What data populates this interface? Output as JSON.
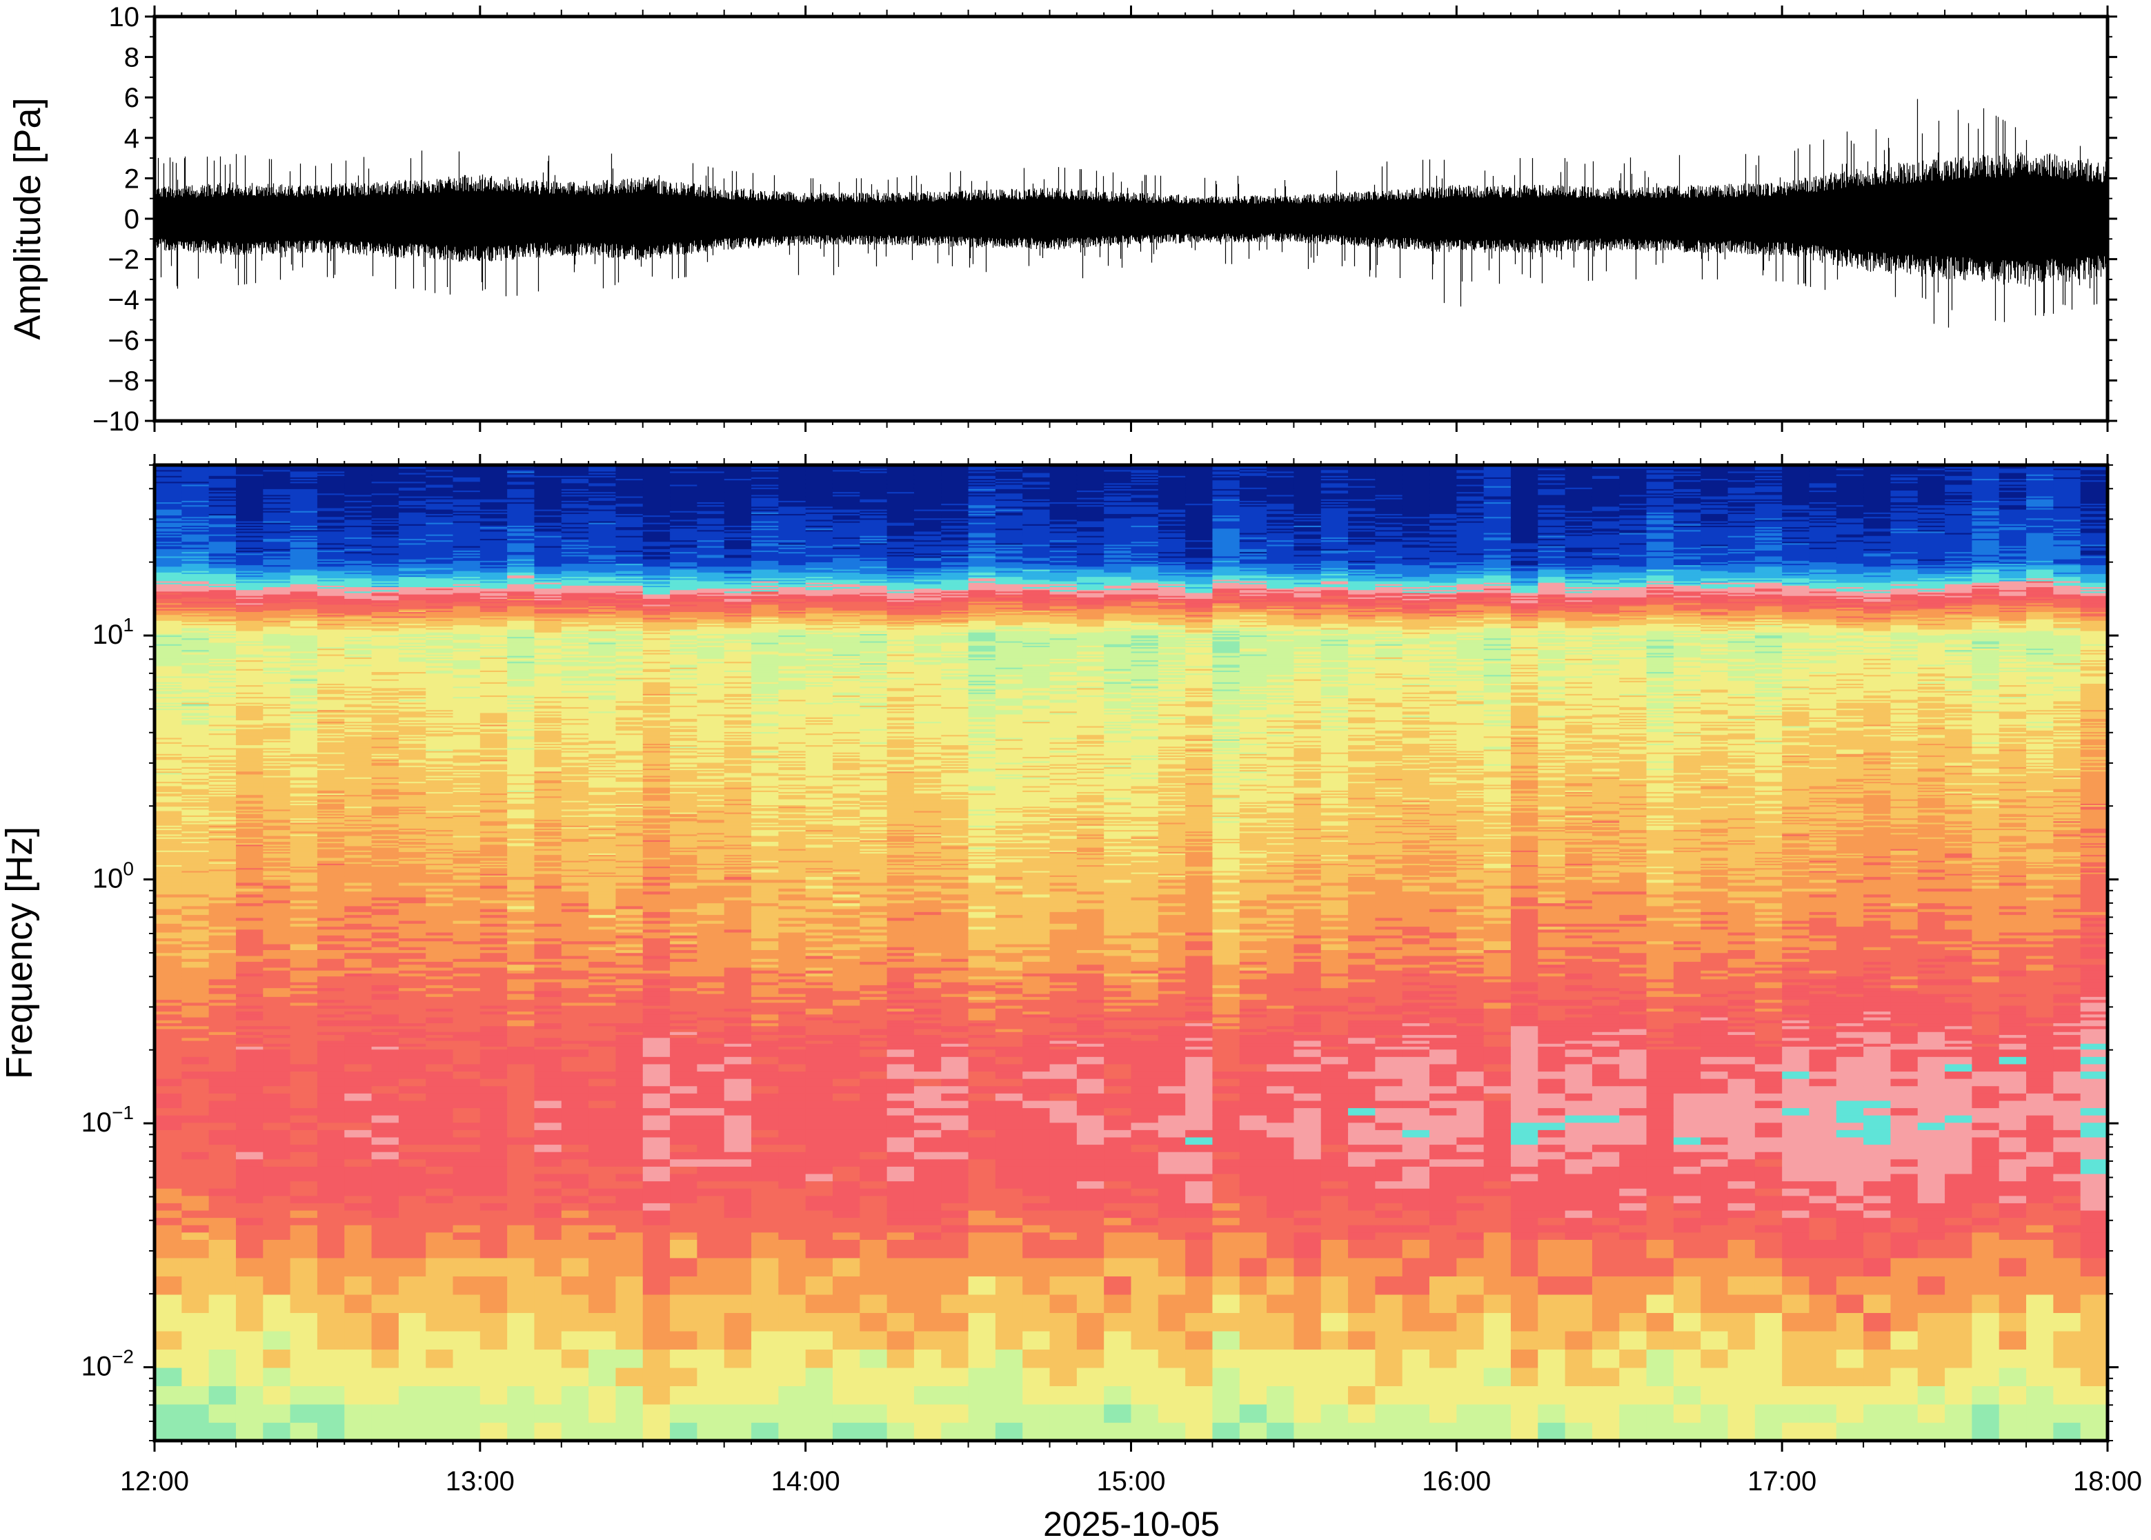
{
  "chart_data": [
    {
      "type": "line",
      "panel": "waveform",
      "ylabel": "Amplitude [Pa]",
      "ylim": [
        -10,
        10
      ],
      "yticks": [
        -10,
        -8,
        -6,
        -4,
        -2,
        0,
        2,
        4,
        6,
        8,
        10
      ],
      "ytick_labels": [
        "−10",
        "−8",
        "−6",
        "−4",
        "−2",
        "0",
        "2",
        "4",
        "6",
        "8",
        "10"
      ],
      "xlim": [
        "12:00",
        "18:00"
      ],
      "grid": false,
      "line_color": "#000000",
      "envelope": {
        "time_hours": [
          12.0,
          12.25,
          12.5,
          12.75,
          13.0,
          13.25,
          13.5,
          13.75,
          14.0,
          14.25,
          14.5,
          14.75,
          15.0,
          15.25,
          15.5,
          15.75,
          16.0,
          16.25,
          16.5,
          16.75,
          17.0,
          17.25,
          17.5,
          17.75,
          18.0
        ],
        "typical_abs_amplitude": [
          1.2,
          1.4,
          1.3,
          1.5,
          1.7,
          1.4,
          1.6,
          1.2,
          1.0,
          1.0,
          1.1,
          1.2,
          1.0,
          0.9,
          0.9,
          1.1,
          1.3,
          1.3,
          1.2,
          1.3,
          1.4,
          2.0,
          2.3,
          2.6,
          2.2
        ],
        "max_positive": [
          3.0,
          3.2,
          2.6,
          3.4,
          3.3,
          3.1,
          3.3,
          2.4,
          2.0,
          2.0,
          2.4,
          2.6,
          2.2,
          2.0,
          2.4,
          2.8,
          3.0,
          3.0,
          3.0,
          3.2,
          3.2,
          4.6,
          6.6,
          4.2,
          3.6
        ],
        "max_negative": [
          -4.0,
          -3.3,
          -2.8,
          -3.5,
          -3.9,
          -3.7,
          -3.2,
          -2.6,
          -3.4,
          -2.2,
          -2.4,
          -3.5,
          -2.4,
          -2.2,
          -2.4,
          -2.9,
          -4.4,
          -3.2,
          -3.0,
          -3.0,
          -3.1,
          -3.9,
          -5.4,
          -5.0,
          -4.1
        ]
      }
    },
    {
      "type": "heatmap",
      "panel": "spectrogram",
      "xlabel": "2025-10-05",
      "ylabel": "Frequency [Hz]",
      "yscale": "log",
      "ylim": [
        0.005,
        50
      ],
      "yticks": [
        0.01,
        0.1,
        1,
        10
      ],
      "ytick_labels": [
        {
          "base": "10",
          "exp": "−2"
        },
        {
          "base": "10",
          "exp": "−1"
        },
        {
          "base": "10",
          "exp": "0"
        },
        {
          "base": "10",
          "exp": "1"
        }
      ],
      "xticks": [
        "12:00",
        "13:00",
        "14:00",
        "15:00",
        "16:00",
        "17:00",
        "18:00"
      ],
      "colormap": [
        "#7fe0e8",
        "#92eab0",
        "#cdf59a",
        "#f2ee84",
        "#f7c45f",
        "#f89a52",
        "#f56a5c",
        "#f45b63",
        "#f7a0a4",
        "#5fe4d8",
        "#2fb2e6",
        "#1a78e0",
        "#0c3cc4",
        "#061c8c"
      ],
      "frequency_hz": [
        0.006,
        0.012,
        0.025,
        0.05,
        0.1,
        0.2,
        0.5,
        1.0,
        2.5,
        5.0,
        10.0,
        20.0,
        40.0
      ],
      "time_hours": [
        12.0,
        13.0,
        14.0,
        15.0,
        16.0,
        17.0,
        18.0
      ],
      "power_level_index": [
        [
          1.6,
          1.8,
          1.9,
          2.1,
          2.0,
          2.3,
          1.9
        ],
        [
          2.9,
          3.4,
          3.4,
          3.9,
          3.5,
          3.7,
          3.8
        ],
        [
          4.3,
          4.6,
          4.8,
          5.0,
          5.1,
          5.3,
          5.6
        ],
        [
          6.3,
          6.6,
          6.5,
          6.9,
          6.7,
          7.2,
          7.4
        ],
        [
          7.0,
          6.8,
          7.1,
          7.6,
          7.6,
          8.0,
          8.3
        ],
        [
          6.6,
          6.5,
          6.8,
          7.0,
          7.1,
          7.2,
          7.9
        ],
        [
          5.1,
          5.4,
          4.6,
          4.9,
          5.3,
          5.4,
          6.2
        ],
        [
          4.6,
          4.7,
          4.1,
          4.2,
          4.4,
          4.6,
          5.4
        ],
        [
          3.9,
          3.8,
          3.3,
          3.4,
          3.6,
          3.8,
          4.6
        ],
        [
          3.2,
          3.2,
          2.9,
          2.9,
          3.0,
          3.1,
          3.9
        ],
        [
          2.4,
          2.3,
          2.0,
          1.9,
          2.0,
          2.1,
          2.5
        ],
        [
          11.4,
          11.5,
          11.6,
          11.8,
          11.7,
          11.6,
          11.5
        ],
        [
          12.6,
          12.8,
          12.9,
          13.0,
          12.8,
          12.7,
          12.6
        ]
      ]
    }
  ]
}
